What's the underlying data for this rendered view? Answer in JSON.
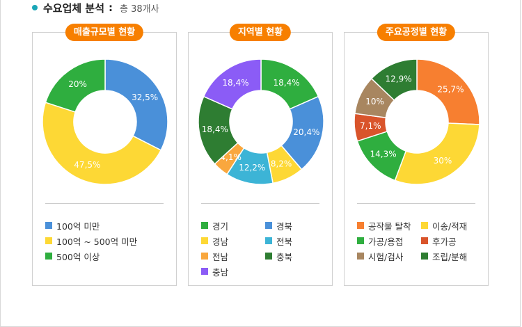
{
  "header": {
    "title": "수요업체 분석",
    "colon": ":",
    "total": "총 38개사"
  },
  "chart_data": [
    {
      "type": "pie",
      "title": "매출규모별 현황",
      "slices": [
        {
          "label": "100억 미만",
          "value": 32.5,
          "value_label": "32,5%",
          "color": "#4a90d9"
        },
        {
          "label": "100억 ~ 500억 미만",
          "value": 47.5,
          "value_label": "47,5%",
          "color": "#fdd835"
        },
        {
          "label": "500억 이상",
          "value": 20,
          "value_label": "20%",
          "color": "#2fae3f"
        }
      ]
    },
    {
      "type": "pie",
      "title": "지역별 현황",
      "slices": [
        {
          "label": "경기",
          "value": 18.4,
          "value_label": "18,4%",
          "color": "#2fae3f"
        },
        {
          "label": "경북",
          "value": 20.4,
          "value_label": "20,4%",
          "color": "#4a90d9"
        },
        {
          "label": "경남",
          "value": 8.2,
          "value_label": "8,2%",
          "color": "#fdd835"
        },
        {
          "label": "전북",
          "value": 12.2,
          "value_label": "12,2%",
          "color": "#3cb4d6"
        },
        {
          "label": "전남",
          "value": 4.1,
          "value_label": "4,1%",
          "color": "#f9a73e"
        },
        {
          "label": "충북",
          "value": 18.4,
          "value_label": "18,4%",
          "color": "#2e7d32"
        },
        {
          "label": "충남",
          "value": 18.4,
          "value_label": "18,4%",
          "color": "#8b5cf6"
        }
      ]
    },
    {
      "type": "pie",
      "title": "주요공정별 현황",
      "slices": [
        {
          "label": "공작물 탈착",
          "value": 25.7,
          "value_label": "25,7%",
          "color": "#f77f30"
        },
        {
          "label": "이송/적재",
          "value": 30,
          "value_label": "30%",
          "color": "#fdd835"
        },
        {
          "label": "가공/용접",
          "value": 14.3,
          "value_label": "14,3%",
          "color": "#2fae3f"
        },
        {
          "label": "후가공",
          "value": 7.1,
          "value_label": "7,1%",
          "color": "#d9542b"
        },
        {
          "label": "시험/검사",
          "value": 10,
          "value_label": "10%",
          "color": "#a88660"
        },
        {
          "label": "조립/분해",
          "value": 12.9,
          "value_label": "12,9%",
          "color": "#2e7d32"
        }
      ]
    }
  ]
}
